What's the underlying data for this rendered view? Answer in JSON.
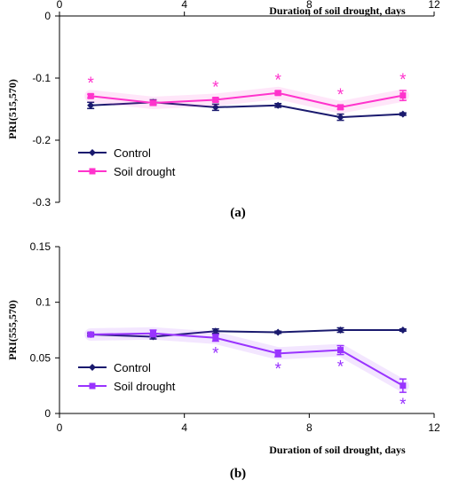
{
  "chart_data": [
    {
      "type": "line",
      "panel_label": "(a)",
      "xlabel": "Duration of soil drought, days",
      "ylabel": "PRI(515,570)",
      "xlim": [
        0,
        12
      ],
      "ylim": [
        -0.3,
        0.0
      ],
      "xticks": [
        0,
        4,
        8,
        12
      ],
      "yticks": [
        0,
        -0.1,
        -0.2,
        -0.3
      ],
      "ytick_labels": [
        "0",
        "-0.1",
        "-0.2",
        "-0.3"
      ],
      "x_axis_position": "top",
      "grid": false,
      "legend_position": "lower-left",
      "series": [
        {
          "name": "Control",
          "color": "#1a1a6e",
          "marker": "diamond",
          "x": [
            1,
            3,
            5,
            7,
            9,
            11
          ],
          "y": [
            -0.144,
            -0.139,
            -0.147,
            -0.144,
            -0.163,
            -0.158
          ],
          "err": [
            0.005,
            0.004,
            0.005,
            0.003,
            0.005,
            0.002
          ]
        },
        {
          "name": "Soil drought",
          "color": "#ff33cc",
          "marker": "square",
          "x": [
            1,
            3,
            5,
            7,
            9,
            11
          ],
          "y": [
            -0.129,
            -0.14,
            -0.135,
            -0.124,
            -0.147,
            -0.128
          ],
          "err": [
            0.003,
            0.004,
            0.003,
            0.003,
            0.003,
            0.008
          ],
          "significant": [
            true,
            false,
            true,
            true,
            true,
            true
          ],
          "star_position": "above",
          "star_label": "*"
        }
      ]
    },
    {
      "type": "line",
      "panel_label": "(b)",
      "xlabel": "Duration of soil drought, days",
      "ylabel": "PRI(555,570)",
      "xlim": [
        0,
        12
      ],
      "ylim": [
        0,
        0.15
      ],
      "xticks": [
        0,
        4,
        8,
        12
      ],
      "yticks": [
        0,
        0.05,
        0.1,
        0.15
      ],
      "ytick_labels": [
        "0",
        "0.05",
        "0.1",
        "0.15"
      ],
      "x_axis_position": "bottom",
      "grid": false,
      "legend_position": "lower-left",
      "series": [
        {
          "name": "Control",
          "color": "#1a1a6e",
          "marker": "diamond",
          "x": [
            1,
            3,
            5,
            7,
            9,
            11
          ],
          "y": [
            0.071,
            0.069,
            0.074,
            0.073,
            0.075,
            0.075
          ],
          "err": [
            0.001,
            0.002,
            0.002,
            0.001,
            0.002,
            0.001
          ]
        },
        {
          "name": "Soil drought",
          "color": "#9933ff",
          "marker": "square",
          "x": [
            1,
            3,
            5,
            7,
            9,
            11
          ],
          "y": [
            0.071,
            0.072,
            0.068,
            0.054,
            0.057,
            0.025
          ],
          "err": [
            0.002,
            0.003,
            0.003,
            0.003,
            0.004,
            0.006
          ],
          "significant": [
            false,
            false,
            true,
            true,
            true,
            true
          ],
          "star_position": "below",
          "star_label": "*"
        }
      ]
    }
  ]
}
